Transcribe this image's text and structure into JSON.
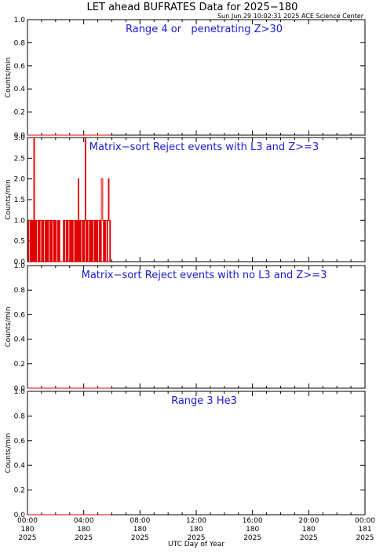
{
  "header": {
    "title": "LET ahead BUFRATES Data for 2025−180",
    "timestamp": "Sun Jun 29 10:02:31 2025 ACE Science Center"
  },
  "x_axis": {
    "label": "UTC Day of Year",
    "ticks": [
      {
        "time": "00:00",
        "doy": "180",
        "year": "2025",
        "hour": 0
      },
      {
        "time": "04:00",
        "doy": "180",
        "year": "2025",
        "hour": 4
      },
      {
        "time": "08:00",
        "doy": "180",
        "year": "2025",
        "hour": 8
      },
      {
        "time": "12:00",
        "doy": "180",
        "year": "2025",
        "hour": 12
      },
      {
        "time": "16:00",
        "doy": "180",
        "year": "2025",
        "hour": 16
      },
      {
        "time": "20:00",
        "doy": "180",
        "year": "2025",
        "hour": 20
      },
      {
        "time": "00:00",
        "doy": "181",
        "year": "2025",
        "hour": 24
      }
    ]
  },
  "colors": {
    "title_text": "#1a1ad4",
    "series": "#e00000",
    "axes": "#000000"
  },
  "chart_data": [
    {
      "type": "line",
      "title": "Range 4 or   penetrating Z>30",
      "ylabel": "Counts/min",
      "ylim": [
        0,
        1.0
      ],
      "yticks": [
        "0.0",
        "0.2",
        "0.4",
        "0.6",
        "0.8",
        "1.0"
      ],
      "ytick_values": [
        0,
        0.2,
        0.4,
        0.6,
        0.8,
        1.0
      ],
      "xlim": [
        0,
        24
      ],
      "x_unit": "hours UTC",
      "series": [
        {
          "x": [
            0,
            2.5,
            5.9
          ],
          "values": [
            0,
            0,
            0
          ]
        }
      ]
    },
    {
      "type": "line",
      "title": "Matrix−sort Reject events with L3 and Z>=3",
      "ylabel": "Counts/min",
      "ylim": [
        0,
        3.0
      ],
      "yticks": [
        "0.0",
        "0.5",
        "1.0",
        "1.5",
        "2.0",
        "2.5",
        "3.0"
      ],
      "ytick_values": [
        0,
        0.5,
        1.0,
        1.5,
        2.0,
        2.5,
        3.0
      ],
      "xlim": [
        0,
        24
      ],
      "x_unit": "hours UTC",
      "series": [
        {
          "x": [
            0.0,
            0.05,
            0.1,
            0.15,
            0.2,
            0.25,
            0.3,
            0.35,
            0.4,
            0.45,
            0.5,
            0.55,
            0.6,
            0.65,
            0.7,
            0.75,
            0.8,
            0.85,
            0.9,
            0.95,
            1.0,
            1.05,
            1.1,
            1.15,
            1.2,
            1.25,
            1.3,
            1.35,
            1.4,
            1.45,
            1.5,
            1.55,
            1.6,
            1.65,
            1.7,
            1.75,
            1.8,
            1.85,
            1.9,
            1.95,
            2.0,
            2.05,
            2.1,
            2.15,
            2.2,
            2.25,
            2.3,
            2.35,
            2.4,
            2.45,
            2.5,
            2.55,
            2.6,
            2.65,
            2.7,
            2.75,
            2.8,
            2.85,
            2.9,
            2.95,
            3.0,
            3.05,
            3.1,
            3.15,
            3.2,
            3.25,
            3.3,
            3.35,
            3.4,
            3.45,
            3.5,
            3.55,
            3.6,
            3.65,
            3.7,
            3.75,
            3.8,
            3.85,
            3.9,
            3.95,
            4.0,
            4.05,
            4.1,
            4.15,
            4.2,
            4.25,
            4.3,
            4.35,
            4.4,
            4.45,
            4.5,
            4.55,
            4.6,
            4.65,
            4.7,
            4.75,
            4.8,
            4.85,
            4.9,
            4.95,
            5.0,
            5.05,
            5.1,
            5.15,
            5.2,
            5.25,
            5.3,
            5.35,
            5.4,
            5.45,
            5.5,
            5.55,
            5.6,
            5.65,
            5.7,
            5.75,
            5.8,
            5.85,
            5.9
          ],
          "values": [
            1,
            0,
            1,
            1,
            0,
            1,
            0,
            1,
            0,
            3,
            0,
            1,
            0,
            1,
            1,
            0,
            1,
            0,
            1,
            1,
            0,
            1,
            0,
            1,
            1,
            0,
            1,
            0,
            1,
            0,
            1,
            1,
            0,
            1,
            0,
            1,
            1,
            0,
            1,
            0,
            1,
            0,
            0,
            1,
            0,
            1,
            0,
            0,
            0,
            0,
            0,
            1,
            0,
            1,
            1,
            0,
            1,
            0,
            1,
            1,
            0,
            1,
            0,
            1,
            0,
            1,
            1,
            0,
            1,
            0,
            1,
            0,
            2,
            0,
            1,
            0,
            1,
            1,
            0,
            1,
            0,
            1,
            3,
            0,
            1,
            0,
            1,
            1,
            0,
            1,
            0,
            1,
            0,
            1,
            1,
            0,
            1,
            0,
            1,
            0,
            1,
            1,
            0,
            1,
            0,
            2,
            2,
            1,
            0,
            1,
            0,
            1,
            1,
            0,
            1,
            2,
            1,
            0,
            1
          ]
        }
      ]
    },
    {
      "type": "line",
      "title": "Matrix−sort Reject events with no L3 and Z>=3",
      "ylabel": "Counts/min",
      "ylim": [
        0,
        1.0
      ],
      "yticks": [
        "0.0",
        "0.2",
        "0.4",
        "0.6",
        "0.8",
        "1.0"
      ],
      "ytick_values": [
        0,
        0.2,
        0.4,
        0.6,
        0.8,
        1.0
      ],
      "xlim": [
        0,
        24
      ],
      "x_unit": "hours UTC",
      "series": [
        {
          "x": [
            0,
            2.5,
            5.9
          ],
          "values": [
            0,
            0,
            0
          ]
        }
      ]
    },
    {
      "type": "line",
      "title": "Range 3 He3",
      "ylabel": "Counts/min",
      "ylim": [
        0,
        1.0
      ],
      "yticks": [
        "0.0",
        "0.2",
        "0.4",
        "0.6",
        "0.8",
        "1.0"
      ],
      "ytick_values": [
        0,
        0.2,
        0.4,
        0.6,
        0.8,
        1.0
      ],
      "xlim": [
        0,
        24
      ],
      "x_unit": "hours UTC",
      "series": [
        {
          "x": [
            0,
            2.5,
            5.9
          ],
          "values": [
            0,
            0,
            0
          ]
        }
      ]
    }
  ]
}
